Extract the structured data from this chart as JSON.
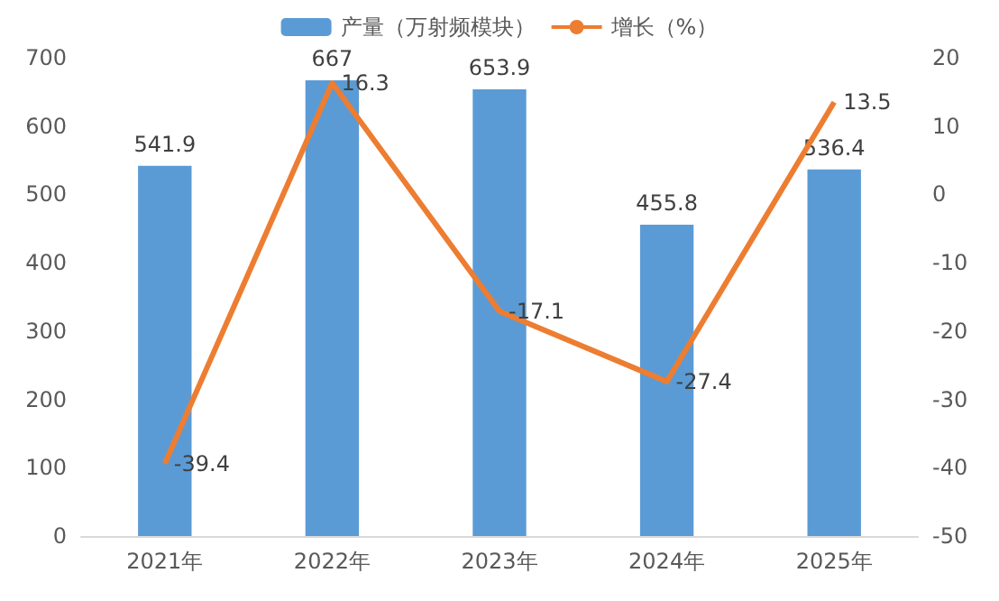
{
  "chart_data": {
    "type": "bar",
    "categories": [
      "2021年",
      "2022年",
      "2023年",
      "2024年",
      "2025年"
    ],
    "series": [
      {
        "name": "产量（万射频模块）",
        "color": "#5b9bd5",
        "values": [
          541.9,
          667,
          653.9,
          455.8,
          536.4
        ]
      },
      {
        "name": "增长（%）",
        "type": "line",
        "axis": "y2",
        "color": "#ed7d31",
        "values": [
          -39.4,
          16.3,
          -17.1,
          -27.4,
          13.5
        ]
      }
    ],
    "ylim": [
      0,
      700
    ],
    "yticks": [
      0,
      100,
      200,
      300,
      400,
      500,
      600,
      700
    ],
    "y2lim": [
      -50,
      20
    ],
    "y2ticks": [
      -50,
      -40,
      -30,
      -20,
      -10,
      0,
      10,
      20
    ],
    "data_labels": true,
    "legend": "top",
    "grid": false,
    "marker": "none",
    "line_style": "solid"
  }
}
